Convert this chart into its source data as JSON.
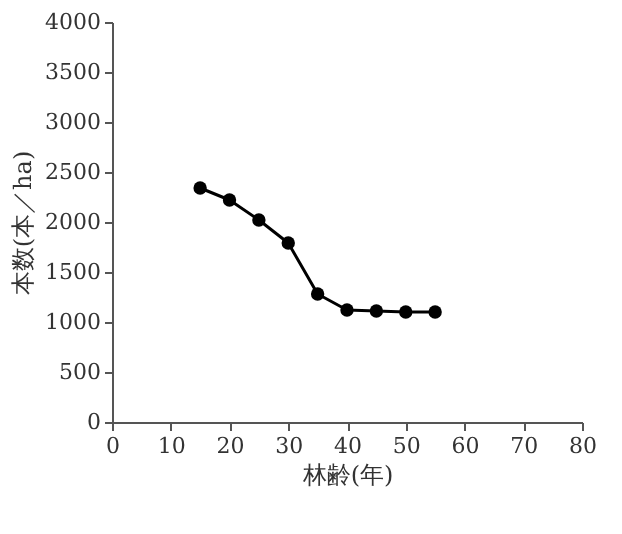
{
  "chart_data": {
    "type": "line",
    "xlabel": "林齢(年)",
    "ylabel": "本数(本／ha)",
    "x": [
      15,
      20,
      25,
      30,
      35,
      40,
      45,
      50,
      55
    ],
    "series": [
      {
        "color": "#000000",
        "values": [
          2340,
          2220,
          2020,
          1790,
          1280,
          1120,
          1110,
          1100,
          1100
        ]
      }
    ],
    "xlim": [
      0,
      80
    ],
    "xticks": [
      0,
      10,
      20,
      30,
      40,
      50,
      60,
      70,
      80
    ],
    "ylim": [
      0,
      4000
    ],
    "yticks": [
      0,
      500,
      1000,
      1500,
      2000,
      2500,
      3000,
      3500,
      4000
    ],
    "marker": "circle",
    "line_style": "solid",
    "grid": false
  }
}
